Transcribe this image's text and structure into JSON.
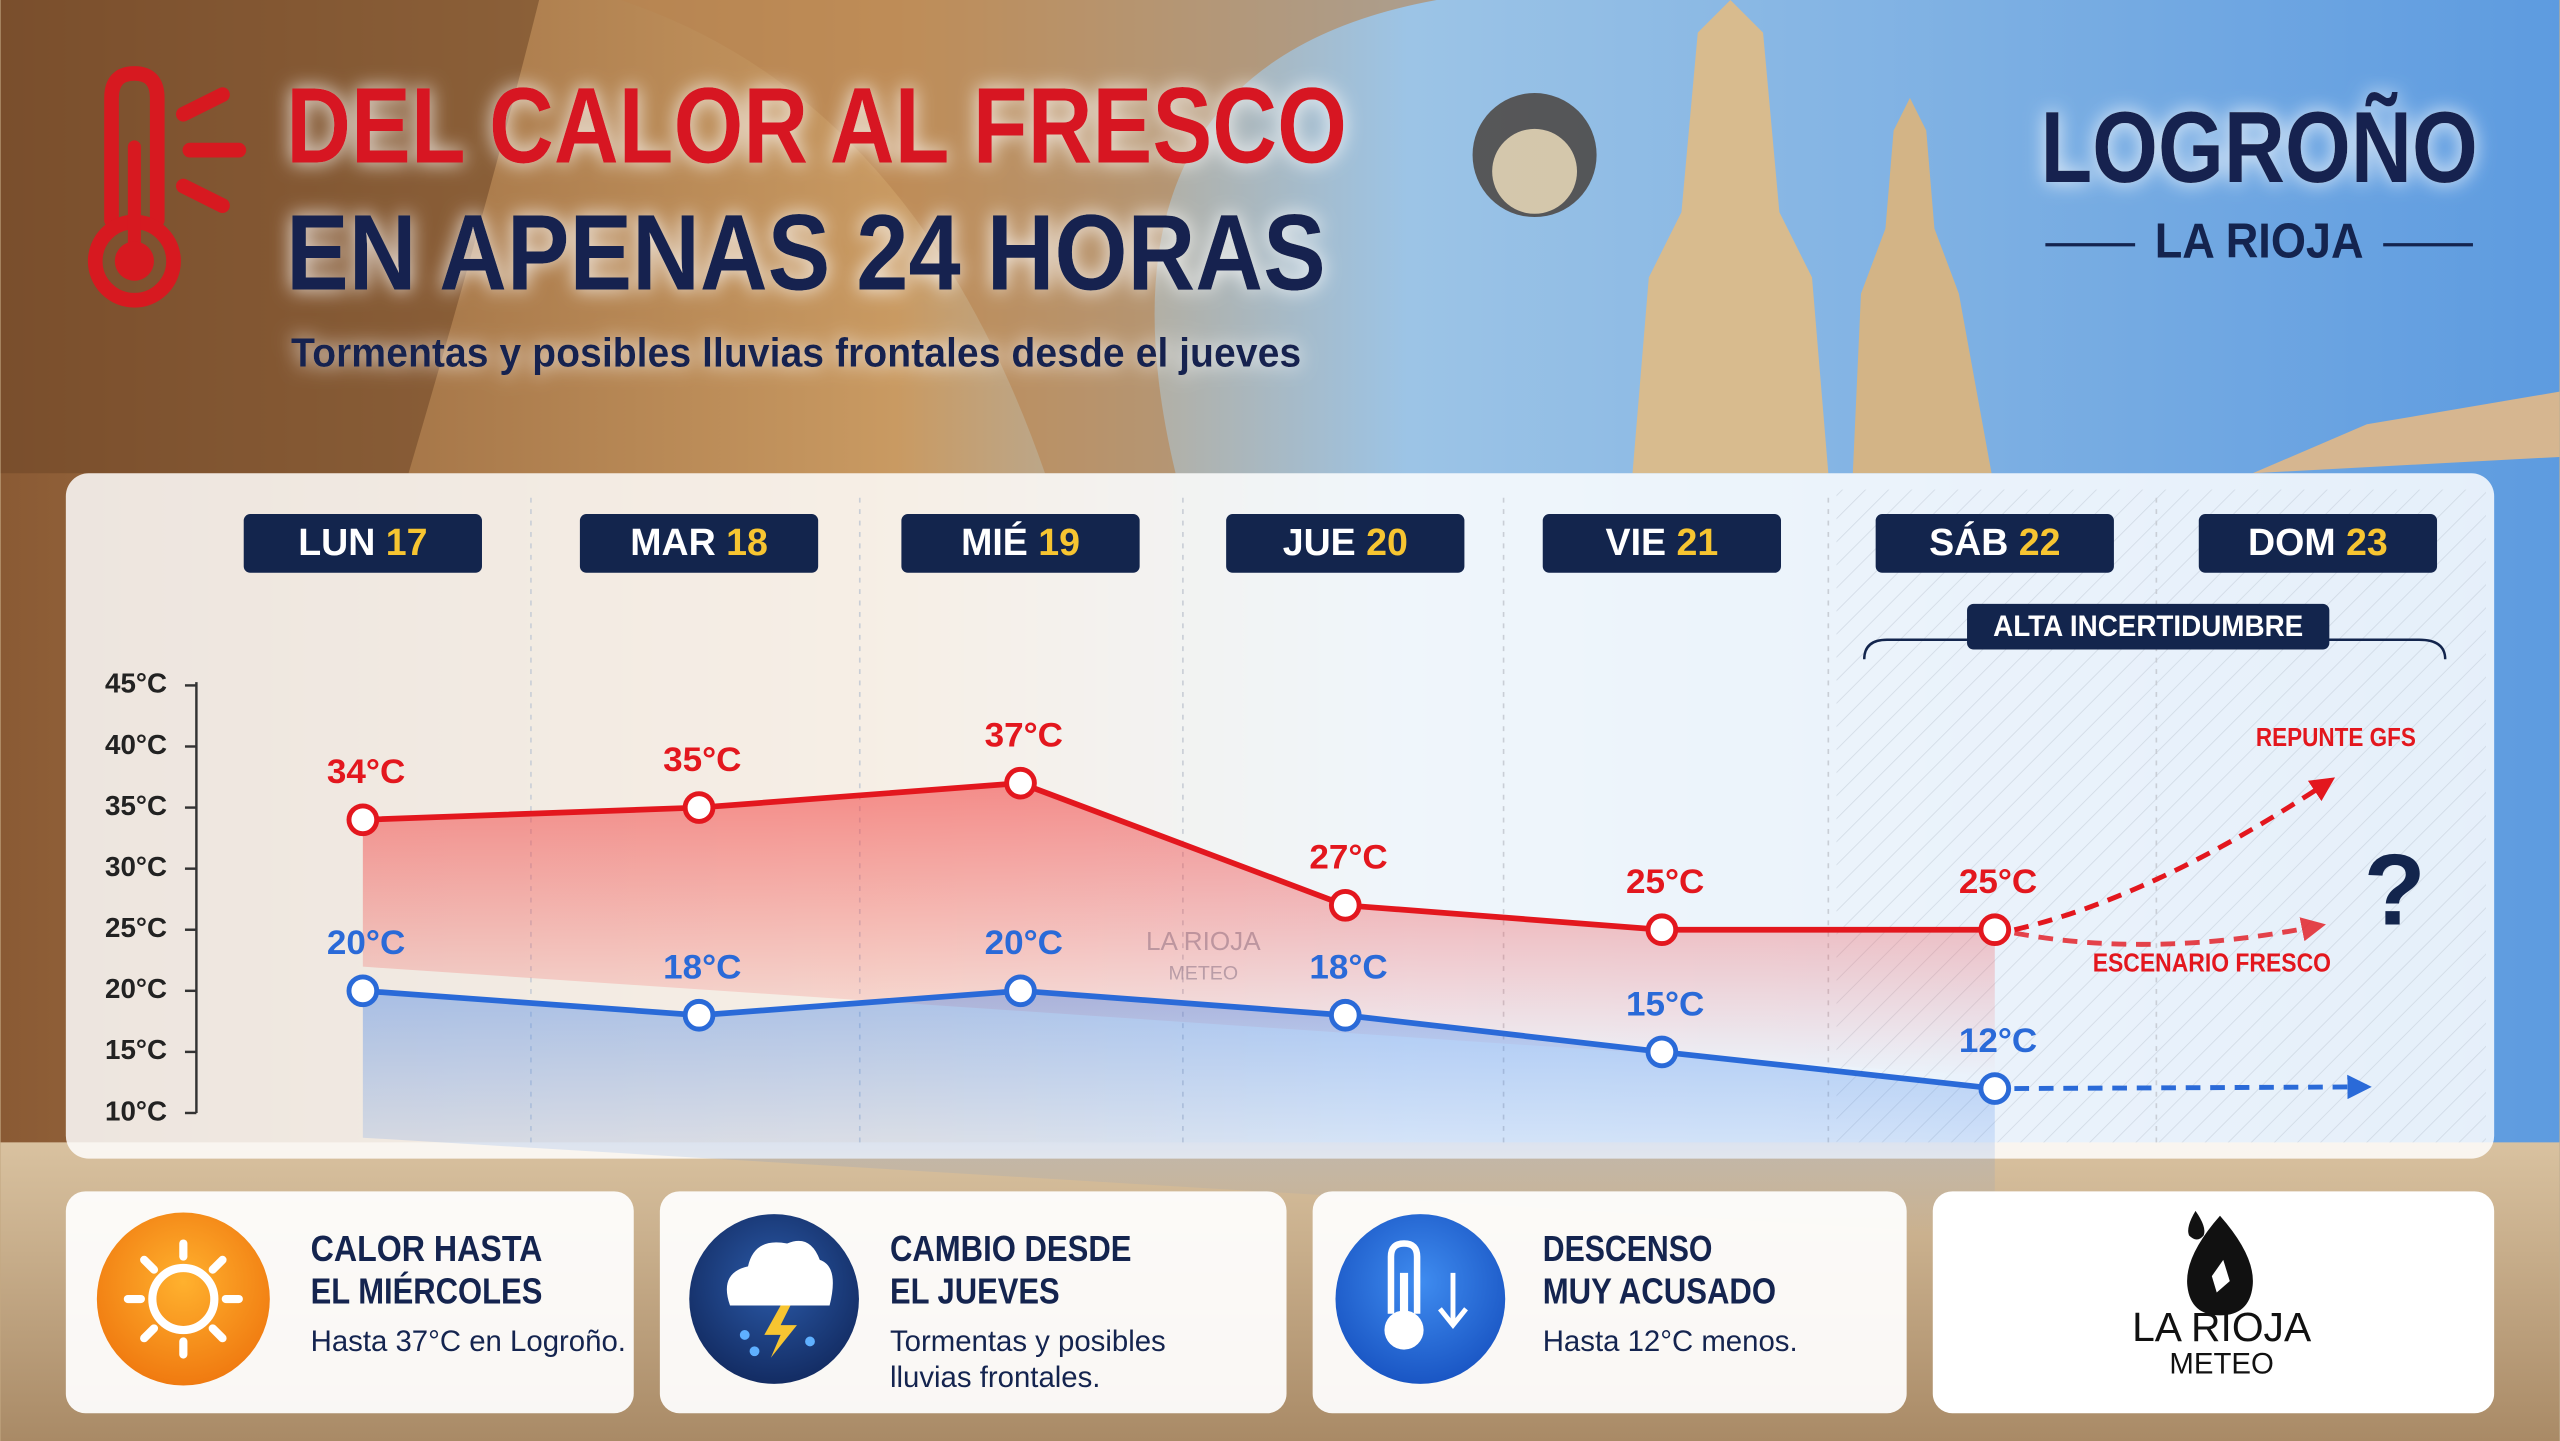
{
  "header": {
    "title_lines": [
      "DEL CALOR AL FRESCO",
      "EN APENAS 24 HORAS"
    ],
    "subtitle": "Tormentas y posibles lluvias frontales desde el jueves"
  },
  "location": {
    "city": "LOGROÑO",
    "region": "LA RIOJA"
  },
  "chart_data": {
    "type": "line",
    "categories": [
      "LUN 17",
      "MAR 18",
      "MIÉ 19",
      "JUE 20",
      "VIE 21",
      "SÁB 22",
      "DOM 23"
    ],
    "series": [
      {
        "color": "#e3171e",
        "values": [
          34,
          35,
          37,
          27,
          25,
          25,
          null
        ],
        "value_labels": [
          "34°C",
          "35°C",
          "37°C",
          "27°C",
          "25°C",
          "25°C",
          null
        ]
      },
      {
        "color": "#2a6ad8",
        "values": [
          20,
          18,
          20,
          18,
          15,
          12,
          null
        ],
        "value_labels": [
          "20°C",
          "18°C",
          "20°C",
          "18°C",
          "15°C",
          "12°C",
          null
        ]
      }
    ],
    "ylim": [
      10,
      45
    ],
    "yticks": [
      {
        "value": 10,
        "label": "10°C"
      },
      {
        "value": 15,
        "label": "15°C"
      },
      {
        "value": 20,
        "label": "20°C"
      },
      {
        "value": 25,
        "label": "25°C"
      },
      {
        "value": 30,
        "label": "30°C"
      },
      {
        "value": 35,
        "label": "35°C"
      },
      {
        "value": 40,
        "label": "40°C"
      },
      {
        "value": 45,
        "label": "45°C"
      }
    ],
    "annotations": {
      "uncertainty": "ALTA INCERTIDUMBRE",
      "upper_scenario": "REPUNTE GFS",
      "lower_scenario": "ESCENARIO FRESCO",
      "question": "?"
    },
    "watermark": [
      "LA RIOJA",
      "METEO"
    ]
  },
  "cards": [
    {
      "title_lines": [
        "CALOR HASTA",
        "EL MIÉRCOLES"
      ],
      "text": "Hasta 37°C en Logroño."
    },
    {
      "title_lines": [
        "CAMBIO DESDE",
        "EL JUEVES"
      ],
      "text": "Tormentas y posibles lluvias frontales."
    },
    {
      "title_lines": [
        "DESCENSO",
        "MUY ACUSADO"
      ],
      "text": "Hasta 12°C menos."
    }
  ],
  "logo": {
    "name": "LA RIOJA",
    "sub": "METEO"
  }
}
